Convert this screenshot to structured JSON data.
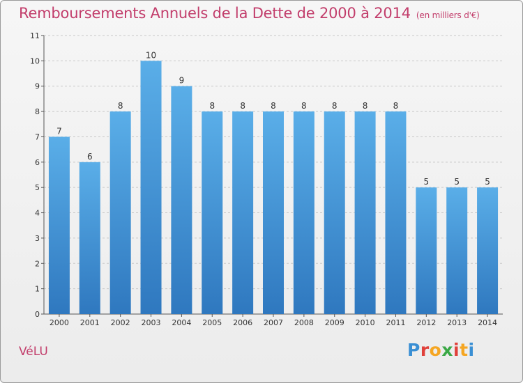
{
  "header": {
    "title": "Remboursements Annuels de la Dette de 2000 à 2014",
    "subtitle": "(en milliers d'€)"
  },
  "footer": {
    "commune": "VéLU",
    "brand_letters": [
      "P",
      "r",
      "o",
      "x",
      "i",
      "t",
      "i"
    ],
    "brand_colors": [
      "#3a8fd4",
      "#e0403a",
      "#f5a623",
      "#3aa845",
      "#e0403a",
      "#f5a623",
      "#3a8fd4"
    ]
  },
  "colors": {
    "bar_top": "#5aaee8",
    "bar_bottom": "#2f78bf",
    "text_accent": "#c23d6b",
    "grid": "#c8c8c8"
  },
  "chart_data": {
    "type": "bar",
    "title": "Remboursements Annuels de la Dette de 2000 à 2014",
    "subtitle": "(en milliers d'€)",
    "categories": [
      "2000",
      "2001",
      "2002",
      "2003",
      "2004",
      "2005",
      "2006",
      "2007",
      "2008",
      "2009",
      "2010",
      "2011",
      "2012",
      "2013",
      "2014"
    ],
    "values": [
      7,
      6,
      8,
      10,
      9,
      8,
      8,
      8,
      8,
      8,
      8,
      8,
      5,
      5,
      5
    ],
    "data_labels": [
      "7",
      "6",
      "8",
      "10",
      "9",
      "8",
      "8",
      "8",
      "8",
      "8",
      "8",
      "8",
      "5",
      "5",
      "5"
    ],
    "yticks": [
      0,
      1,
      2,
      3,
      4,
      5,
      6,
      7,
      8,
      9,
      10,
      11
    ],
    "ylim": [
      0,
      11
    ],
    "xlabel": "",
    "ylabel": "",
    "grid": true,
    "legend": "none"
  }
}
